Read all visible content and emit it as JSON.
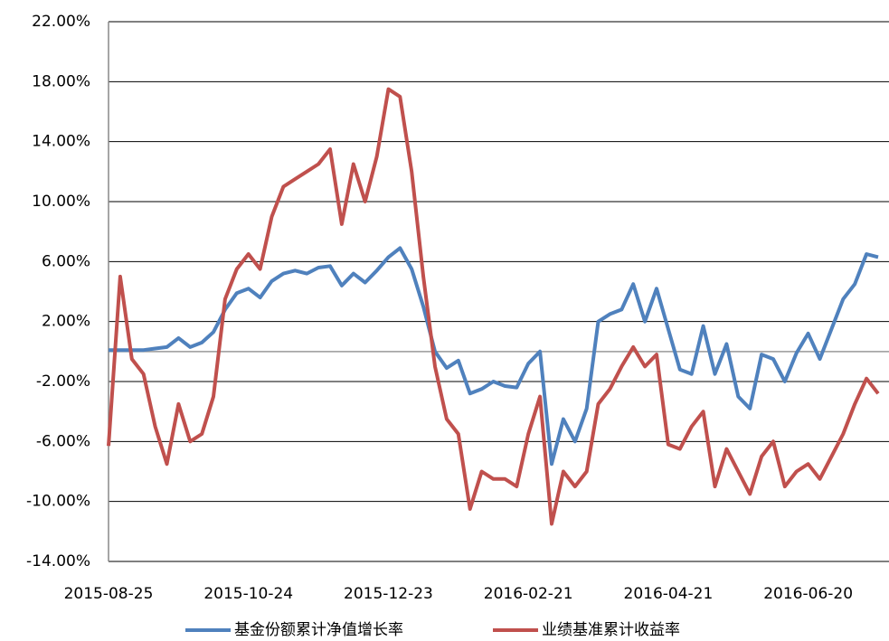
{
  "chart_data": {
    "type": "line",
    "categories": [
      "2015-08-25",
      null,
      null,
      null,
      null,
      null,
      null,
      null,
      null,
      null,
      null,
      null,
      "2015-10-24",
      null,
      null,
      null,
      null,
      null,
      null,
      null,
      null,
      null,
      null,
      null,
      "2015-12-23",
      null,
      null,
      null,
      null,
      null,
      null,
      null,
      null,
      null,
      null,
      null,
      "2016-02-21",
      null,
      null,
      null,
      null,
      null,
      null,
      null,
      null,
      null,
      null,
      null,
      "2016-04-21",
      null,
      null,
      null,
      null,
      null,
      null,
      null,
      null,
      null,
      null,
      null,
      "2016-06-20",
      null,
      null,
      null,
      null,
      null,
      null
    ],
    "series": [
      {
        "name": "基金份额累计净值增长率",
        "color": "#4f81bd",
        "values": [
          0.1,
          0.1,
          0.1,
          0.1,
          0.2,
          0.3,
          0.9,
          0.3,
          0.6,
          1.3,
          2.8,
          3.9,
          4.2,
          3.6,
          4.7,
          5.2,
          5.4,
          5.2,
          5.6,
          5.7,
          4.4,
          5.2,
          4.6,
          5.4,
          6.3,
          6.9,
          5.5,
          3.0,
          0.0,
          -1.1,
          -0.6,
          -2.8,
          -2.5,
          -2.0,
          -2.3,
          -2.4,
          -0.8,
          0.0,
          -7.5,
          -4.5,
          -6.0,
          -3.8,
          2.0,
          2.5,
          2.8,
          4.5,
          2.0,
          4.2,
          1.5,
          -1.2,
          -1.5,
          1.7,
          -1.5,
          0.5,
          -3.0,
          -3.8,
          -0.2,
          -0.5,
          -2.0,
          -0.1,
          1.2,
          -0.5,
          1.5,
          3.5,
          4.5,
          6.5,
          6.3
        ]
      },
      {
        "name": "业绩基准累计收益率",
        "color": "#c0504d",
        "values": [
          -6.3,
          5.0,
          -0.5,
          -1.5,
          -5.0,
          -7.5,
          -3.5,
          -6.0,
          -5.5,
          -3.0,
          3.5,
          5.5,
          6.5,
          5.5,
          9.0,
          11.0,
          11.5,
          12.0,
          12.5,
          13.5,
          8.5,
          12.5,
          10.0,
          13.0,
          17.5,
          17.0,
          12.0,
          5.0,
          -1.0,
          -4.5,
          -5.5,
          -10.5,
          -8.0,
          -8.5,
          -8.5,
          -9.0,
          -5.5,
          -3.0,
          -11.5,
          -8.0,
          -9.0,
          -8.0,
          -3.5,
          -2.5,
          -1.0,
          0.3,
          -1.0,
          -0.2,
          -6.2,
          -6.5,
          -5.0,
          -4.0,
          -9.0,
          -6.5,
          -8.0,
          -9.5,
          -7.0,
          -6.0,
          -9.0,
          -8.0,
          -7.5,
          -8.5,
          -7.0,
          -5.5,
          -3.5,
          -1.8,
          -2.8
        ]
      }
    ],
    "ylim": [
      -14,
      22
    ],
    "yticks": [
      {
        "value": -14,
        "label": "-14.00%"
      },
      {
        "value": -10,
        "label": "-10.00%"
      },
      {
        "value": -6,
        "label": "-6.00%"
      },
      {
        "value": -2,
        "label": "-2.00%"
      },
      {
        "value": 2,
        "label": "2.00%"
      },
      {
        "value": 6,
        "label": "6.00%"
      },
      {
        "value": 10,
        "label": "10.00%"
      },
      {
        "value": 14,
        "label": "14.00%"
      },
      {
        "value": 18,
        "label": "18.00%"
      },
      {
        "value": 22,
        "label": "22.00%"
      }
    ],
    "grid": true,
    "legend": "bottom"
  }
}
